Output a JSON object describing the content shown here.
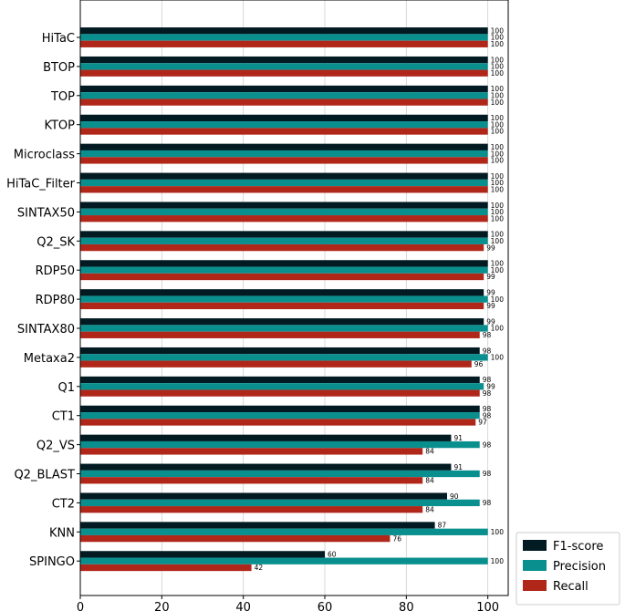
{
  "chart_data": {
    "type": "bar",
    "orientation": "horizontal",
    "xlim": [
      0,
      105
    ],
    "xticks": [
      0,
      20,
      40,
      60,
      80,
      100
    ],
    "grid": true,
    "legend_position": "bottom-right",
    "categories": [
      "HiTaC",
      "BTOP",
      "TOP",
      "KTOP",
      "Microclass",
      "HiTaC_Filter",
      "SINTAX50",
      "Q2_SK",
      "RDP50",
      "RDP80",
      "SINTAX80",
      "Metaxa2",
      "Q1",
      "CT1",
      "Q2_VS",
      "Q2_BLAST",
      "CT2",
      "KNN",
      "SPINGO"
    ],
    "series": [
      {
        "name": "F1-score",
        "color": "#021a22",
        "values": [
          100,
          100,
          100,
          100,
          100,
          100,
          100,
          100,
          100,
          99,
          99,
          98,
          98,
          98,
          91,
          91,
          90,
          87,
          60
        ],
        "labels": [
          "100",
          "100",
          "100",
          "100",
          "100",
          "100",
          "100",
          "100",
          "100",
          "99",
          "99",
          "98",
          "98",
          "98",
          "91",
          "91",
          "90",
          "87",
          "60"
        ]
      },
      {
        "name": "Precision",
        "color": "#0a8f8f",
        "values": [
          100,
          100,
          100,
          100,
          100,
          100,
          100,
          100,
          100,
          100,
          100,
          100,
          99,
          98,
          98,
          98,
          98,
          100,
          100
        ],
        "labels": [
          "100",
          "100",
          "100",
          "100",
          "100",
          "100",
          "100",
          "100",
          "100",
          "100",
          "100",
          "100",
          "99",
          "98",
          "98",
          "98",
          "98",
          "100",
          "100"
        ]
      },
      {
        "name": "Recall",
        "color": "#b0271a",
        "values": [
          100,
          100,
          100,
          100,
          100,
          100,
          100,
          99,
          99,
          99,
          98,
          96,
          98,
          97,
          84,
          84,
          84,
          76,
          42
        ],
        "labels": [
          "100",
          "100",
          "100",
          "100",
          "100",
          "100",
          "100",
          "99",
          "99",
          "99",
          "98",
          "96",
          "98",
          "97",
          "84",
          "84",
          "84",
          "76",
          "42"
        ]
      }
    ]
  }
}
